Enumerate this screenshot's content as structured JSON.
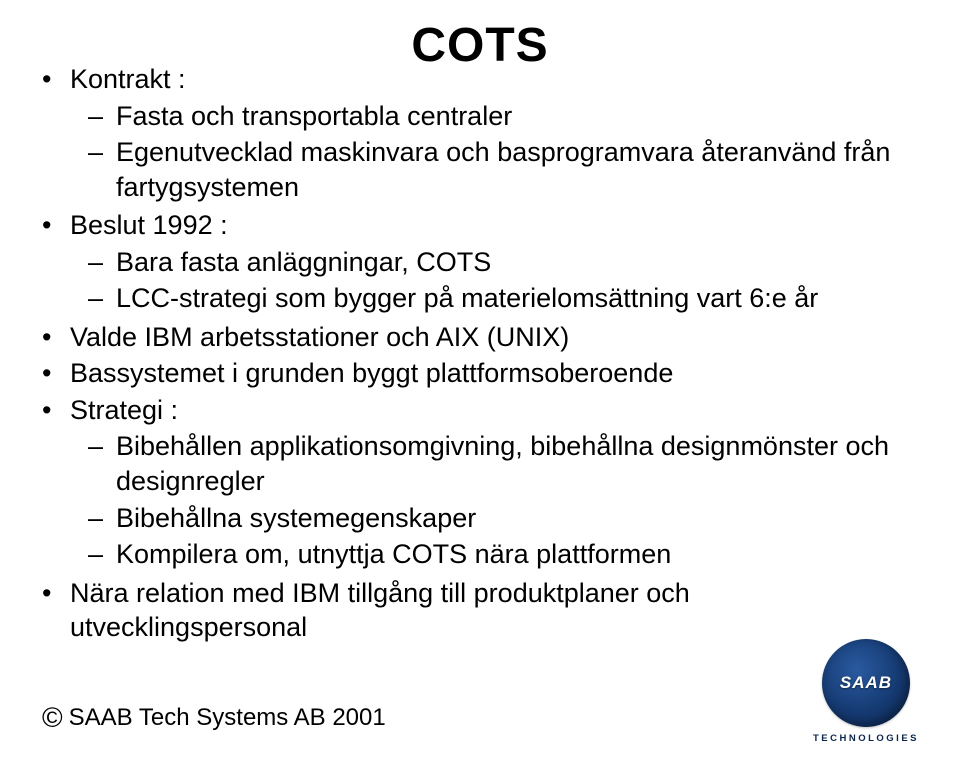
{
  "slide": {
    "title": "COTS",
    "title_fontsize": 48,
    "title_weight": 700,
    "body_fontsize": 27,
    "text_color": "#000000",
    "background_color": "#ffffff",
    "bullets": [
      {
        "text": "Kontrakt :",
        "children": [
          {
            "text": "Fasta och transportabla centraler"
          },
          {
            "text": "Egenutvecklad maskinvara och basprogramvara återanvänd från fartygsystemen"
          }
        ]
      },
      {
        "text": "Beslut 1992 :",
        "children": [
          {
            "text": "Bara fasta anläggningar, COTS"
          },
          {
            "text": "LCC-strategi som bygger på materielomsättning vart 6:e år"
          }
        ]
      },
      {
        "text": "Valde IBM arbetsstationer och AIX (UNIX)"
      },
      {
        "text": "Bassystemet i grunden byggt plattformsoberoende"
      },
      {
        "text": "Strategi :",
        "children": [
          {
            "text": "Bibehållen applikationsomgivning, bibehållna designmönster och designregler"
          },
          {
            "text": "Bibehållna systemegenskaper"
          },
          {
            "text": "Kompilera om, utnyttja COTS nära plattformen"
          }
        ]
      },
      {
        "text": "Nära relation med IBM tillgång till produktplaner och utvecklingspersonal"
      }
    ]
  },
  "footer": {
    "copyright_symbol": "©",
    "text": "SAAB Tech Systems AB 2001",
    "fontsize": 24
  },
  "logo": {
    "brand": "SAAB",
    "subline": "TECHNOLOGIES",
    "circle_gradient_from": "#2a5aa0",
    "circle_gradient_to": "#0c254d",
    "text_color": "#ffffff",
    "subline_color": "#0c254d"
  }
}
